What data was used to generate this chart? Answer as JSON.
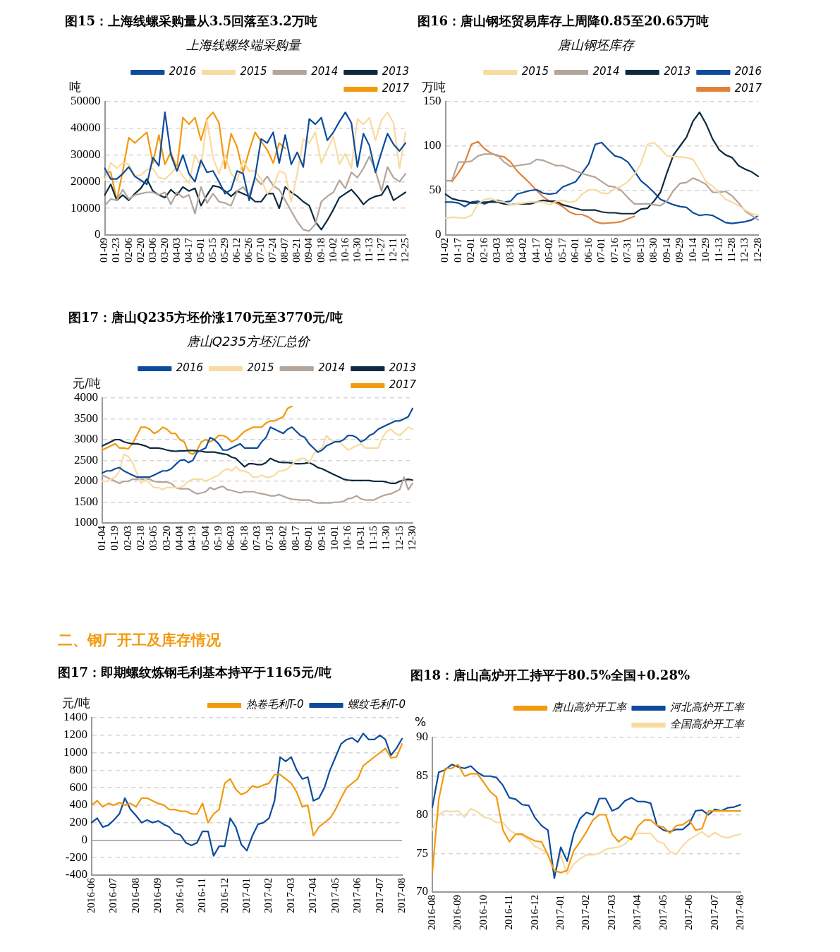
{
  "chart_data": [
    {
      "type": "line",
      "title": "图15：上海线螺采购量从3.5回落至3.2万吨",
      "subtitle": "上海线螺终端采购量",
      "ylabel": "吨",
      "grid": "y",
      "legend": "top",
      "categories": [
        "01-09",
        null,
        "01-23",
        null,
        "02-06",
        null,
        "02-20",
        null,
        "03-06",
        null,
        "03-20",
        null,
        "04-03",
        null,
        "04-17",
        null,
        "05-01",
        null,
        "05-15",
        null,
        "05-29",
        null,
        "06-12",
        null,
        "06-26",
        null,
        "07-10",
        null,
        "07-24",
        null,
        "08-07",
        null,
        "08-21",
        null,
        "09-04",
        null,
        "09-18",
        null,
        "10-02",
        null,
        "10-16",
        null,
        "10-30",
        null,
        "11-13",
        null,
        "11-27",
        null,
        "12-11",
        null,
        "12-25"
      ],
      "ylim": [
        0,
        50000
      ],
      "yticks": [
        0,
        10000,
        20000,
        30000,
        40000,
        50000
      ],
      "series": [
        {
          "name": "2016",
          "color": "#0d4c9c",
          "values": [
            25000,
            21000,
            21000,
            23000,
            25500,
            22000,
            20500,
            19000,
            29000,
            26000,
            46000,
            30000,
            24000,
            30000,
            23000,
            20000,
            28000,
            23500,
            24000,
            20000,
            15500,
            17000,
            24000,
            23000,
            13000,
            22000,
            36000,
            34500,
            38500,
            27000,
            37500,
            26500,
            31000,
            25500,
            43500,
            41500,
            44000,
            35500,
            38500,
            42500,
            46000,
            42000,
            25500,
            38000,
            33500,
            23500,
            31000,
            38000,
            34000,
            31500,
            34500
          ]
        },
        {
          "name": "2015",
          "color": "#f8dba0",
          "values": [
            20500,
            27000,
            25000,
            27000,
            26500,
            22000,
            22500,
            24500,
            25000,
            21500,
            21000,
            23000,
            25500,
            22000,
            19500,
            30000,
            25500,
            43000,
            29000,
            23000,
            30000,
            23000,
            20500,
            28000,
            24000,
            24000,
            21000,
            15500,
            18000,
            24000,
            23000,
            12500,
            23000,
            36000,
            34500,
            38500,
            27000,
            32000,
            37000,
            26500,
            30500,
            25000,
            43500,
            41500,
            44000,
            35500,
            43000,
            46000,
            42000,
            25000,
            38500
          ]
        },
        {
          "name": "2014",
          "color": "#b3a59a",
          "values": [
            11000,
            13500,
            13000,
            17000,
            13500,
            15000,
            15500,
            16000,
            16000,
            15000,
            16000,
            11500,
            16000,
            14000,
            15000,
            8000,
            18000,
            12000,
            15500,
            12500,
            12000,
            11000,
            16500,
            18000,
            15000,
            21500,
            19000,
            22000,
            18500,
            17000,
            13000,
            9000,
            5000,
            2000,
            1500,
            4000,
            12500,
            14500,
            16000,
            20500,
            17500,
            23500,
            21500,
            25000,
            29500,
            24000,
            16500,
            25500,
            21500,
            20000,
            23000
          ]
        },
        {
          "name": "2013",
          "color": "#0d2a3f",
          "values": [
            15000,
            19000,
            13000,
            15000,
            13000,
            15500,
            17500,
            21000,
            16500,
            15000,
            14000,
            17000,
            15000,
            18000,
            16500,
            17500,
            11000,
            15000,
            18500,
            18000,
            16500,
            14500,
            16500,
            15500,
            14500,
            12500,
            12500,
            15500,
            15500,
            10000,
            18000,
            16000,
            14500,
            12500,
            11000,
            5000,
            2000,
            5500,
            9500,
            14000,
            15500,
            17000,
            14500,
            11500,
            13500,
            14500,
            15000,
            18500,
            13000,
            14500,
            16000
          ]
        },
        {
          "name": "2017",
          "color": "#f29a0c",
          "values": [
            24000,
            23500,
            13000,
            24000,
            36500,
            34500,
            36500,
            38500,
            27000,
            37500,
            26500,
            31000,
            25000,
            44000,
            41500,
            44000,
            35500,
            43500,
            46000,
            42000,
            25000,
            38000,
            33000,
            23500,
            31500,
            38500,
            35000,
            32000,
            27000,
            34500,
            32500,
            null,
            null,
            null,
            null,
            null,
            null,
            null,
            null,
            null,
            null,
            null,
            null,
            null,
            null,
            null,
            null,
            null,
            null,
            null,
            null
          ]
        }
      ]
    },
    {
      "type": "line",
      "title": "图16：唐山钢坯贸易库存上周降0.85至20.65万吨",
      "subtitle": "唐山钢坯库存",
      "ylabel": "万吨",
      "grid": "y",
      "legend": "top",
      "categories": [
        "01-02",
        null,
        "01-17",
        null,
        "02-01",
        null,
        "02-16",
        null,
        "03-03",
        null,
        "03-18",
        null,
        "04-02",
        null,
        "04-17",
        null,
        "05-02",
        null,
        "05-17",
        null,
        "06-01",
        null,
        "06-16",
        null,
        "07-01",
        null,
        "07-16",
        null,
        "07-31",
        null,
        "08-15",
        null,
        "08-30",
        null,
        "09-14",
        null,
        "09-29",
        null,
        "10-14",
        null,
        "10-29",
        null,
        "11-13",
        null,
        "11-28",
        null,
        "12-13",
        null,
        "12-28"
      ],
      "ylim": [
        0,
        150
      ],
      "yticks": [
        0,
        50,
        100,
        150
      ],
      "series": [
        {
          "name": "2015",
          "color": "#f8dba0",
          "values": [
            19,
            20,
            19.5,
            19,
            22,
            35,
            40,
            41,
            38,
            37,
            34,
            35,
            36,
            37,
            37,
            37,
            34,
            38,
            39,
            37,
            38,
            46,
            51,
            51,
            47,
            47,
            52,
            55,
            60,
            68,
            80,
            102,
            104,
            97,
            89,
            88,
            88,
            87,
            85,
            73,
            60,
            55,
            48,
            40,
            37,
            33,
            28,
            24,
            22
          ]
        },
        {
          "name": "2014",
          "color": "#b3a59a",
          "values": [
            61,
            61,
            82,
            82,
            83,
            89,
            91,
            91,
            90,
            82,
            77,
            78,
            79,
            80,
            85,
            84,
            81,
            78,
            78,
            75,
            72,
            69,
            67,
            65,
            60,
            55,
            54,
            50,
            42,
            35,
            35,
            35,
            34,
            33,
            38,
            50,
            58,
            59,
            64,
            61,
            57,
            48,
            48,
            49,
            44,
            36,
            27,
            22,
            17
          ]
        },
        {
          "name": "2013",
          "color": "#0d2a3f",
          "values": [
            46,
            41,
            39,
            38,
            36,
            36,
            37,
            37,
            37,
            35,
            34,
            35,
            35,
            35,
            37,
            39,
            38,
            38,
            34,
            32,
            30,
            28,
            28,
            28,
            26,
            25,
            25,
            24,
            24,
            24,
            29,
            30,
            38,
            48,
            70,
            90,
            100,
            110,
            128,
            138,
            125,
            108,
            96,
            90,
            87,
            78,
            74,
            71,
            66
          ]
        },
        {
          "name": "2016",
          "color": "#0d4c9c",
          "values": [
            37,
            37,
            36,
            32,
            37,
            38,
            35,
            38,
            39,
            37,
            38,
            46,
            48,
            50,
            51,
            47,
            46,
            47,
            54,
            57,
            60,
            70,
            80,
            102,
            104,
            96,
            89,
            87,
            82,
            72,
            61,
            55,
            48,
            40,
            37,
            34,
            32,
            31,
            25,
            22,
            23,
            22,
            18,
            14,
            13,
            14,
            15,
            17,
            22
          ]
        },
        {
          "name": "2017",
          "color": "#e0823a",
          "values": [
            null,
            60,
            70,
            82,
            102,
            105,
            97,
            92,
            89,
            88,
            82,
            72,
            65,
            58,
            50,
            43,
            38,
            36,
            32,
            26,
            23,
            23,
            20,
            15,
            13,
            13.5,
            14,
            15,
            18,
            21,
            null,
            null,
            null,
            null,
            null,
            null,
            null,
            null,
            null,
            null,
            null,
            null,
            null,
            null,
            null,
            null,
            null,
            null,
            null
          ]
        }
      ]
    },
    {
      "type": "line",
      "title": "图17：唐山Q235方坯价涨170元至3770元/吨",
      "subtitle": "唐山Q235方坯汇总价",
      "ylabel": "元/吨",
      "grid": "y",
      "legend": "top",
      "categories": [
        "01-04",
        null,
        null,
        "01-19",
        null,
        null,
        "02-03",
        null,
        null,
        "02-18",
        null,
        null,
        "03-05",
        null,
        null,
        "03-20",
        null,
        null,
        "04-04",
        null,
        null,
        "04-19",
        null,
        null,
        "05-04",
        null,
        null,
        "05-19",
        null,
        null,
        "06-03",
        null,
        null,
        "06-18",
        null,
        null,
        "07-03",
        null,
        null,
        "07-18",
        null,
        null,
        "08-02",
        null,
        null,
        "08-17",
        null,
        null,
        "09-01",
        null,
        null,
        "09-16",
        null,
        null,
        "10-01",
        null,
        null,
        "10-16",
        null,
        null,
        "10-31",
        null,
        null,
        "11-15",
        null,
        null,
        "11-30",
        null,
        null,
        "12-15",
        null,
        null,
        "12-30"
      ],
      "ylim": [
        1000,
        4000
      ],
      "yticks": [
        1000,
        1500,
        2000,
        2500,
        3000,
        3500,
        4000
      ],
      "series": [
        {
          "name": "2016",
          "color": "#0d4c9c",
          "values": [
            2200,
            2250,
            2250,
            2300,
            2330,
            2250,
            2200,
            2150,
            2100,
            2100,
            2100,
            2100,
            2150,
            2200,
            2250,
            2250,
            2300,
            2400,
            2500,
            2520,
            2450,
            2500,
            2700,
            2750,
            2800,
            3050,
            3000,
            2900,
            2750,
            2750,
            2800,
            2850,
            2900,
            2800,
            2800,
            2800,
            2800,
            2950,
            3050,
            3300,
            3250,
            3200,
            3150,
            3250,
            3300,
            3200,
            3100,
            3050,
            2900,
            2800,
            2700,
            2750,
            2850,
            2900,
            2950,
            2950,
            3000,
            3100,
            3100,
            3050,
            2950,
            3000,
            3100,
            3150,
            3250,
            3300,
            3350,
            3400,
            3450,
            3450,
            3500,
            3550,
            3750
          ]
        },
        {
          "name": "2015",
          "color": "#f8dba0",
          "values": [
            2000,
            2000,
            2050,
            2100,
            2250,
            2650,
            2600,
            2450,
            2200,
            1950,
            2050,
            1950,
            1850,
            1850,
            1800,
            1850,
            1850,
            1850,
            1850,
            1900,
            2000,
            2050,
            2050,
            2050,
            2000,
            2050,
            2100,
            2150,
            2250,
            2300,
            2250,
            2350,
            2250,
            2250,
            2200,
            2100,
            2100,
            2150,
            2100,
            2100,
            2150,
            2250,
            2250,
            2300,
            2400,
            2500,
            2550,
            2550,
            2450,
            2650,
            2750,
            2800,
            3100,
            3000,
            2950,
            2950,
            2850,
            2750,
            2800,
            2850,
            2900,
            2800,
            2800,
            2800,
            2800,
            3050,
            3200,
            3250,
            3150,
            3100,
            3200,
            3300,
            3250
          ]
        },
        {
          "name": "2014",
          "color": "#b3a59a",
          "values": [
            2150,
            2100,
            2050,
            2000,
            1950,
            2000,
            2000,
            2050,
            2050,
            2050,
            2050,
            2050,
            2000,
            1980,
            1980,
            1980,
            1950,
            1850,
            1820,
            1820,
            1820,
            1750,
            1700,
            1720,
            1750,
            1850,
            1800,
            1850,
            1880,
            1800,
            1780,
            1750,
            1720,
            1750,
            1750,
            1750,
            1720,
            1700,
            1680,
            1650,
            1650,
            1680,
            1640,
            1600,
            1570,
            1560,
            1550,
            1550,
            1550,
            1500,
            1480,
            1480,
            1480,
            1480,
            1500,
            1500,
            1520,
            1580,
            1600,
            1650,
            1580,
            1550,
            1550,
            1550,
            1600,
            1650,
            1680,
            1700,
            1750,
            1800,
            2100,
            1800,
            1950
          ]
        },
        {
          "name": "2013",
          "color": "#0d2a3f",
          "values": [
            2850,
            2900,
            2950,
            3000,
            3000,
            2950,
            2920,
            2900,
            2900,
            2880,
            2850,
            2800,
            2800,
            2800,
            2780,
            2750,
            2730,
            2720,
            2730,
            2730,
            2740,
            2740,
            2730,
            2720,
            2700,
            2700,
            2700,
            2680,
            2660,
            2640,
            2580,
            2550,
            2450,
            2350,
            2420,
            2420,
            2400,
            2400,
            2450,
            2550,
            2500,
            2460,
            2450,
            2450,
            2440,
            2420,
            2420,
            2430,
            2450,
            2400,
            2330,
            2300,
            2250,
            2200,
            2150,
            2100,
            2050,
            2030,
            2020,
            2020,
            2020,
            2020,
            2020,
            2000,
            2000,
            2000,
            1980,
            1950,
            1950,
            2000,
            2030,
            2050,
            2030
          ]
        },
        {
          "name": "2017",
          "color": "#f29a0c",
          "values": [
            2750,
            2800,
            2850,
            2900,
            2800,
            2800,
            2780,
            2900,
            3100,
            3300,
            3300,
            3250,
            3150,
            3200,
            3300,
            3250,
            3150,
            3150,
            3000,
            2950,
            2700,
            2650,
            2750,
            2950,
            3000,
            2950,
            3000,
            3100,
            3100,
            3050,
            2950,
            3000,
            3100,
            3200,
            3250,
            3300,
            3300,
            3300,
            3400,
            3450,
            3450,
            3500,
            3550,
            3750,
            3800,
            null,
            null,
            null,
            null,
            null,
            null,
            null,
            null,
            null,
            null,
            null,
            null,
            null,
            null,
            null,
            null,
            null,
            null,
            null,
            null,
            null,
            null,
            null,
            null,
            null,
            null,
            null,
            null
          ]
        }
      ]
    },
    {
      "type": "line",
      "title": "图17：即期螺纹炼钢毛利基本持平于1165元/吨",
      "annotations": [
        "二、钢厂开工及库存情况"
      ],
      "ylabel": "元/吨",
      "grid": "y",
      "legend": "top",
      "categories": [
        "2016-06",
        null,
        null,
        null,
        "2016-07",
        null,
        null,
        null,
        "2016-08",
        null,
        null,
        null,
        "2016-09",
        null,
        null,
        null,
        "2016-10",
        null,
        null,
        null,
        "2016-11",
        null,
        null,
        null,
        "2016-12",
        null,
        null,
        null,
        "2017-01",
        null,
        null,
        null,
        "2017-02",
        null,
        null,
        null,
        "2017-03",
        null,
        null,
        null,
        "2017-04",
        null,
        null,
        null,
        "2017-05",
        null,
        null,
        null,
        "2017-06",
        null,
        null,
        null,
        "2017-07",
        null,
        null,
        null,
        "2017-08"
      ],
      "ylim": [
        -400,
        1400
      ],
      "yticks": [
        -400,
        -200,
        0,
        200,
        400,
        600,
        800,
        1000,
        1200,
        1400
      ],
      "series": [
        {
          "name": "热卷毛利T-0",
          "color": "#f29a0c",
          "values": [
            400,
            450,
            380,
            420,
            400,
            430,
            400,
            420,
            380,
            480,
            480,
            450,
            420,
            400,
            350,
            350,
            330,
            330,
            300,
            300,
            420,
            200,
            300,
            350,
            650,
            700,
            580,
            520,
            550,
            620,
            600,
            630,
            650,
            750,
            750,
            700,
            650,
            550,
            380,
            400,
            50,
            150,
            200,
            250,
            350,
            480,
            600,
            650,
            700,
            850,
            900,
            950,
            1000,
            1050,
            940,
            950,
            1100
          ]
        },
        {
          "name": "螺纹毛利T-0",
          "color": "#0d4c9c",
          "values": [
            200,
            250,
            150,
            170,
            230,
            300,
            480,
            350,
            280,
            200,
            230,
            200,
            220,
            180,
            150,
            80,
            60,
            -30,
            -60,
            -30,
            100,
            100,
            -180,
            -70,
            -70,
            250,
            150,
            -50,
            -120,
            50,
            180,
            200,
            250,
            450,
            950,
            900,
            950,
            800,
            700,
            720,
            450,
            480,
            600,
            800,
            950,
            1100,
            1150,
            1170,
            1120,
            1220,
            1150,
            1150,
            1200,
            1150,
            970,
            1050,
            1160
          ]
        }
      ]
    },
    {
      "type": "line",
      "title": "图18：唐山高炉开工持平于80.5%全国+0.28%",
      "ylabel": "%",
      "grid": "y",
      "legend": "top",
      "categories": [
        "2016-08",
        null,
        null,
        null,
        "2016-09",
        null,
        null,
        null,
        "2016-10",
        null,
        null,
        null,
        "2016-11",
        null,
        null,
        null,
        "2016-12",
        null,
        null,
        null,
        "2017-01",
        null,
        null,
        null,
        "2017-02",
        null,
        null,
        null,
        "2017-03",
        null,
        null,
        null,
        "2017-04",
        null,
        null,
        null,
        "2017-05",
        null,
        null,
        null,
        "2017-06",
        null,
        null,
        null,
        "2017-07",
        null,
        null,
        null,
        "2017-08"
      ],
      "ylim": [
        70,
        90
      ],
      "yticks": [
        70,
        75,
        80,
        85,
        90
      ],
      "series": [
        {
          "name": "唐山高炉开工率",
          "color": "#f29a0c",
          "values": [
            72.5,
            82,
            86,
            86,
            86.5,
            85,
            85.3,
            85.3,
            84.2,
            83,
            82.3,
            78,
            76.5,
            77.5,
            77.5,
            77,
            76.6,
            76.5,
            74.8,
            72.8,
            72.5,
            72.8,
            75.3,
            76.5,
            77.8,
            79.3,
            80,
            80,
            77.5,
            76.5,
            77.2,
            76.8,
            78.5,
            79.3,
            79.3,
            78.6,
            78.4,
            77.6,
            78.6,
            78.7,
            79.3,
            78,
            78.2,
            80.5,
            80.5,
            80.5,
            80.5,
            80.5,
            80.5
          ]
        },
        {
          "name": "河北高炉开工率",
          "color": "#0d4c9c",
          "values": [
            81,
            85.5,
            85.8,
            86.5,
            86.2,
            86,
            86.3,
            85.5,
            85,
            85,
            84.8,
            83.8,
            82.2,
            82,
            81.3,
            81.2,
            79.6,
            78.6,
            78,
            71.8,
            75.8,
            74,
            77.5,
            79.5,
            80.3,
            80,
            82.1,
            82.1,
            80.5,
            80.9,
            81.8,
            82.2,
            81.7,
            81.7,
            81.5,
            78.6,
            78,
            77.8,
            78.1,
            78.1,
            78.8,
            80.5,
            80.6,
            80,
            80.7,
            80.5,
            80.9,
            81,
            81.3
          ]
        },
        {
          "name": "全国高炉开工率",
          "color": "#f8dba0",
          "values": [
            78,
            80,
            80.5,
            80.4,
            80.5,
            79.7,
            80.8,
            80.4,
            79.7,
            79.5,
            79,
            79,
            78,
            77.5,
            77.3,
            76.8,
            75.9,
            75.5,
            75,
            72.3,
            74.8,
            72.3,
            73.6,
            74.3,
            74.8,
            74.8,
            75,
            75.5,
            75.7,
            75.8,
            76.2,
            77.1,
            77.6,
            77.6,
            77.6,
            76.6,
            76.3,
            75.2,
            74.9,
            76,
            76.8,
            77.3,
            77.8,
            77.1,
            77.7,
            77.2,
            77,
            77.3,
            77.5
          ]
        }
      ]
    }
  ]
}
